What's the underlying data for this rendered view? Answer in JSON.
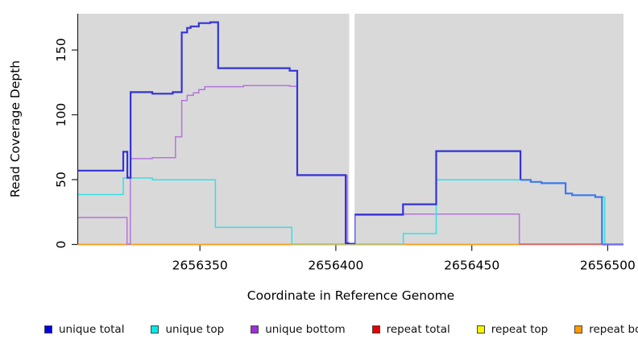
{
  "chart_data": {
    "type": "line",
    "subtype": "step-coverage",
    "title": "",
    "xlabel": "Coordinate in Reference Genome",
    "ylabel": "Read Coverage Depth",
    "xlim": [
      2656305.2,
      2656505.8
    ],
    "ylim": [
      0,
      178
    ],
    "x_ticks": [
      2656350,
      2656400,
      2656450,
      2656500
    ],
    "y_ticks": [
      0,
      50,
      100,
      150
    ],
    "grid": false,
    "panel_bg": "#d9d9d9",
    "axis_color": "#222222",
    "gap_region": {
      "x_start": 2656404.9,
      "x_end": 2656406.9,
      "color": "#ffffff",
      "meaning": "no-data gap"
    },
    "series": [
      {
        "name": "repeat total",
        "width": 1.5,
        "parts": [
          {
            "color": "#e05858",
            "steps": [
              [
                2656305.2,
                0
              ],
              [
                2656505.8,
                0
              ]
            ]
          }
        ]
      },
      {
        "name": "repeat top",
        "width": 1.5,
        "parts": [
          {
            "color": "#f0f060",
            "steps": [
              [
                2656305.2,
                0
              ],
              [
                2656505.8,
                0
              ]
            ]
          }
        ]
      },
      {
        "name": "repeat bottom",
        "width": 1.7,
        "parts": [
          {
            "color": "#ff9d21",
            "steps": [
              [
                2656305.2,
                0
              ],
              [
                2656505.8,
                0
              ]
            ]
          }
        ]
      },
      {
        "name": "unique bottom",
        "width": 1.5,
        "parts": [
          {
            "color": "#b375dc",
            "steps": [
              [
                2656305.2,
                20.8
              ],
              [
                2656323.2,
                0.3
              ],
              [
                2656324.4,
                66.2
              ],
              [
                2656332.5,
                67
              ],
              [
                2656341,
                83
              ],
              [
                2656343.3,
                111
              ],
              [
                2656345.3,
                115
              ],
              [
                2656347.6,
                117
              ],
              [
                2656349.6,
                119.5
              ],
              [
                2656351.8,
                121.7
              ],
              [
                2656366,
                122.6
              ],
              [
                2656383,
                122
              ],
              [
                2656385.8,
                53.2
              ],
              [
                2656404.2,
                0.3
              ],
              [
                2656406.9,
                23.5
              ],
              [
                2656467.5,
                0.3
              ]
            ]
          },
          {
            "color": "#d05a88",
            "steps": [
              [
                2656467.5,
                0.3
              ],
              [
                2656505.8,
                0.3
              ]
            ]
          }
        ]
      },
      {
        "name": "unique top",
        "width": 1.5,
        "parts": [
          {
            "color": "#35dfe6",
            "steps": [
              [
                2656305.2,
                38.5
              ],
              [
                2656321.8,
                51.3
              ],
              [
                2656332.5,
                49.8
              ],
              [
                2656355.7,
                13.2
              ],
              [
                2656383.8,
                0.4
              ]
            ]
          },
          {
            "color": "#92cf92",
            "steps": [
              [
                2656383.8,
                0.4
              ],
              [
                2656424.6,
                0.4
              ]
            ]
          },
          {
            "color": "#35dfe6",
            "steps": [
              [
                2656424.6,
                0.4
              ],
              [
                2656424.8,
                8.4
              ],
              [
                2656436.9,
                49.8
              ],
              [
                2656467.9,
                49.8
              ],
              [
                2656471.7,
                48.3
              ],
              [
                2656475.6,
                47.3
              ],
              [
                2656484.5,
                39.3
              ],
              [
                2656486.9,
                38
              ],
              [
                2656495.4,
                36.6
              ],
              [
                2656498.9,
                0
              ]
            ]
          }
        ]
      },
      {
        "name": "unique total",
        "width": 2.2,
        "parts": [
          {
            "color": "#3433d6",
            "steps": [
              [
                2656305.2,
                57
              ],
              [
                2656321.8,
                71.5
              ],
              [
                2656323.3,
                51.5
              ],
              [
                2656324.5,
                117.5
              ],
              [
                2656332.5,
                116.3
              ],
              [
                2656340,
                117.5
              ],
              [
                2656343.3,
                163.5
              ],
              [
                2656345.3,
                167
              ],
              [
                2656346.6,
                168.2
              ],
              [
                2656349.6,
                170.7
              ],
              [
                2656353.8,
                171.4
              ],
              [
                2656356.7,
                136
              ],
              [
                2656383,
                134
              ],
              [
                2656385.8,
                53.5
              ],
              [
                2656403.6,
                1
              ],
              [
                2656406.9,
                23
              ],
              [
                2656424.7,
                31
              ],
              [
                2656436.9,
                72
              ],
              [
                2656467.9,
                49.8
              ]
            ]
          },
          {
            "color": "#3b79ec",
            "steps": [
              [
                2656467.9,
                49.8
              ],
              [
                2656471.7,
                48.3
              ],
              [
                2656475.6,
                47.3
              ],
              [
                2656484.5,
                39.3
              ],
              [
                2656486.9,
                38
              ],
              [
                2656495.4,
                36.6
              ],
              [
                2656497.9,
                0
              ]
            ]
          },
          {
            "color": "#6f6ff2",
            "steps": [
              [
                2656497.9,
                0
              ],
              [
                2656505.8,
                0
              ]
            ]
          }
        ]
      }
    ],
    "legend": [
      {
        "label": "unique total",
        "color": "#0202e8"
      },
      {
        "label": "unique top",
        "color": "#00eaea"
      },
      {
        "label": "unique bottom",
        "color": "#9f2fd8"
      },
      {
        "label": "repeat total",
        "color": "#e60000"
      },
      {
        "label": "repeat top",
        "color": "#f5f500"
      },
      {
        "label": "repeat bottom",
        "color": "#ff9a00"
      }
    ],
    "legend_position": "bottom"
  }
}
